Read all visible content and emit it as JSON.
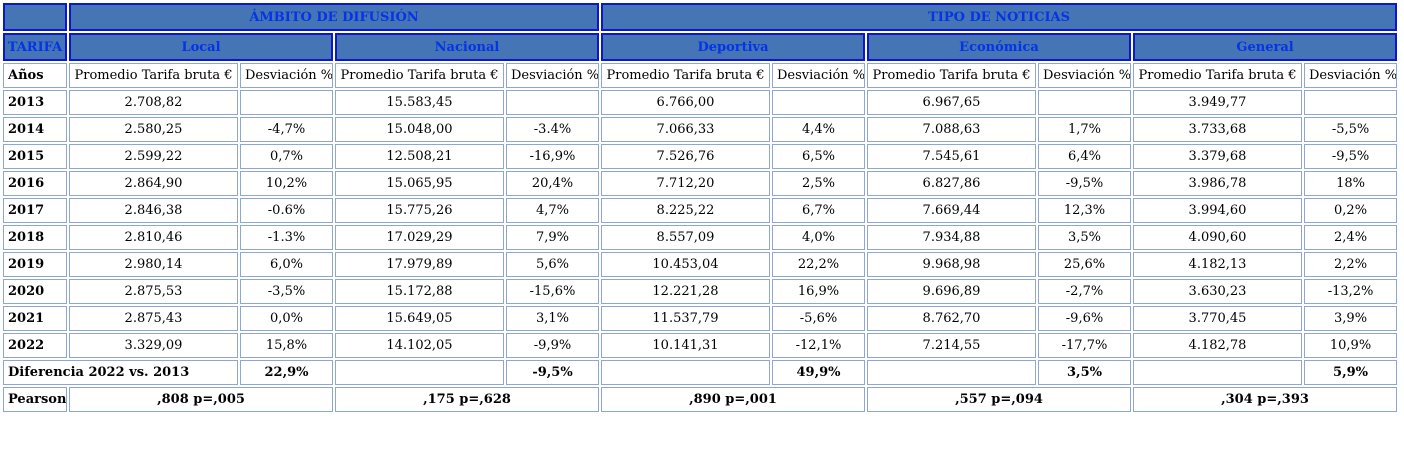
{
  "colors": {
    "header_fill": "#4575B5",
    "header_border": "#0b17cd",
    "header_text": "#0533e6",
    "body_border": "#8EA6D4",
    "text": "#000000",
    "background": "#FFFFFF"
  },
  "table": {
    "top_headers": {
      "ambito": "ÁMBITO DE DIFUSIÓN",
      "tipo": "TIPO DE NOTICIAS"
    },
    "tarifa_label": "TARIFA",
    "groups": [
      "Local",
      "Nacional",
      "Deportiva",
      "Económica",
      "General"
    ],
    "anos_label": "Años",
    "promedio_label": "Promedio Tarifa bruta €",
    "desviacion_label": "Desviación %",
    "rows": [
      {
        "year": "2013",
        "cells": [
          "2.708,82",
          "",
          "15.583,45",
          "",
          "6.766,00",
          "",
          "6.967,65",
          "",
          "3.949,77",
          ""
        ]
      },
      {
        "year": "2014",
        "cells": [
          "2.580,25",
          "-4,7%",
          "15.048,00",
          "-3.4%",
          "7.066,33",
          "4,4%",
          "7.088,63",
          "1,7%",
          "3.733,68",
          "-5,5%"
        ]
      },
      {
        "year": "2015",
        "cells": [
          "2.599,22",
          "0,7%",
          "12.508,21",
          "-16,9%",
          "7.526,76",
          "6,5%",
          "7.545,61",
          "6,4%",
          "3.379,68",
          "-9,5%"
        ]
      },
      {
        "year": "2016",
        "cells": [
          "2.864,90",
          "10,2%",
          "15.065,95",
          "20,4%",
          "7.712,20",
          "2,5%",
          "6.827,86",
          "-9,5%",
          "3.986,78",
          "18%"
        ]
      },
      {
        "year": "2017",
        "cells": [
          "2.846,38",
          "-0.6%",
          "15.775,26",
          "4,7%",
          "8.225,22",
          "6,7%",
          "7.669,44",
          "12,3%",
          "3.994,60",
          "0,2%"
        ]
      },
      {
        "year": "2018",
        "cells": [
          "2.810,46",
          "-1.3%",
          "17.029,29",
          "7,9%",
          "8.557,09",
          "4,0%",
          "7.934,88",
          "3,5%",
          "4.090,60",
          "2,4%"
        ]
      },
      {
        "year": "2019",
        "cells": [
          "2.980,14",
          "6,0%",
          "17.979,89",
          "5,6%",
          "10.453,04",
          "22,2%",
          "9.968,98",
          "25,6%",
          "4.182,13",
          "2,2%"
        ]
      },
      {
        "year": "2020",
        "cells": [
          "2.875,53",
          "-3,5%",
          "15.172,88",
          "-15,6%",
          "12.221,28",
          "16,9%",
          "9.696,89",
          "-2,7%",
          "3.630,23",
          "-13,2%"
        ]
      },
      {
        "year": "2021",
        "cells": [
          "2.875,43",
          "0,0%",
          "15.649,05",
          "3,1%",
          "11.537,79",
          "-5,6%",
          "8.762,70",
          "-9,6%",
          "3.770,45",
          "3,9%"
        ]
      },
      {
        "year": "2022",
        "cells": [
          "3.329,09",
          "15,8%",
          "14.102,05",
          "-9,9%",
          "10.141,31",
          "-12,1%",
          "7.214,55",
          "-17,7%",
          "4.182,78",
          "10,9%"
        ]
      }
    ],
    "diferencia": {
      "label": "Diferencia 2022 vs. 2013",
      "values": [
        "22,9%",
        "-9,5%",
        "49,9%",
        "3,5%",
        "5,9%"
      ]
    },
    "pearson": {
      "label": "Pearson",
      "values": [
        ",808 p=,005",
        ",175 p=,628",
        ",890 p=,001",
        ",557 p=,094",
        ",304 p=,393"
      ]
    }
  }
}
